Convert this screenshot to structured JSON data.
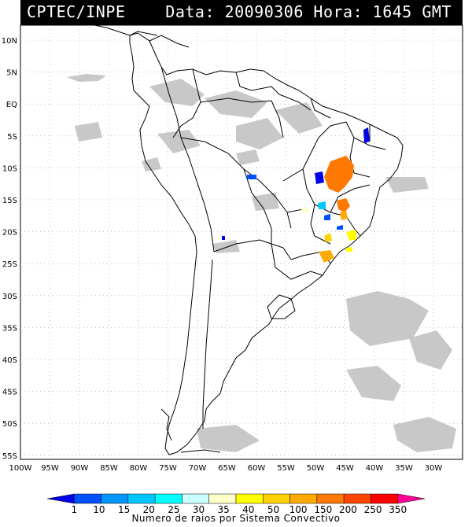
{
  "header": {
    "source": "CPTEC/INPE",
    "datetime_text": "Data: 20090306 Hora: 1645 GMT"
  },
  "map": {
    "lat_labels": [
      "10N",
      "5N",
      "EQ",
      "5S",
      "10S",
      "15S",
      "20S",
      "25S",
      "30S",
      "35S",
      "40S",
      "45S",
      "50S",
      "55S"
    ],
    "lon_labels": [
      "100W",
      "95W",
      "90W",
      "85W",
      "80W",
      "75W",
      "70W",
      "65W",
      "60W",
      "55W",
      "50W",
      "45W",
      "40W",
      "35W",
      "30W"
    ]
  },
  "colorbar": {
    "title": "Numero de raios por Sistema Convectivo",
    "labels": [
      "1",
      "10",
      "15",
      "20",
      "25",
      "30",
      "35",
      "40",
      "50",
      "100",
      "150",
      "200",
      "250",
      "350"
    ],
    "colors": [
      "#0000e6",
      "#0050ff",
      "#0096ff",
      "#00c8ff",
      "#00ffff",
      "#c8ffff",
      "#ffffc8",
      "#ffff00",
      "#ffd200",
      "#ffaa00",
      "#ff7800",
      "#ff4600",
      "#ff0000",
      "#ff0096"
    ]
  },
  "colors": {
    "header_bg": "#000000",
    "header_text": "#ffffff",
    "cloud": "#c8c8c8",
    "coast": "#000000",
    "grid": "#9a9a9a"
  }
}
